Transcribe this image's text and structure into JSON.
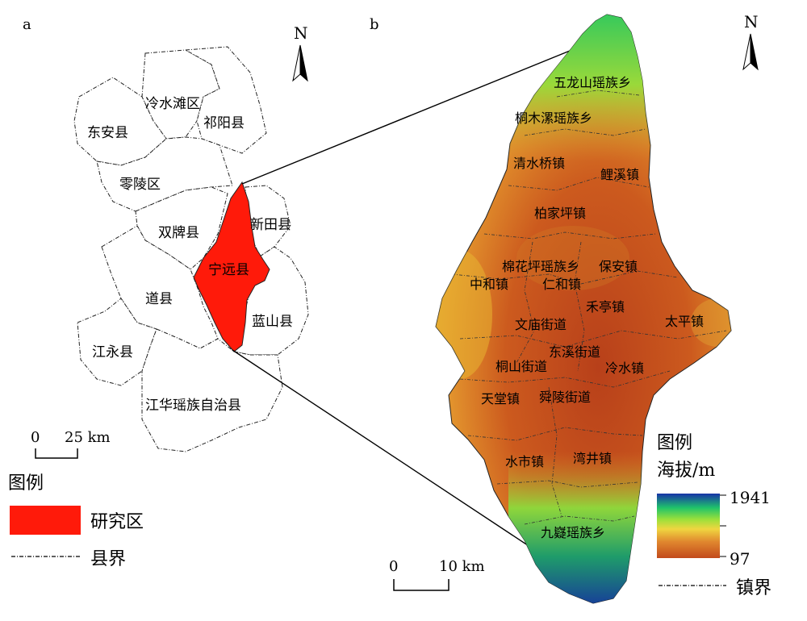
{
  "panels": {
    "a": {
      "letter": "a"
    },
    "b": {
      "letter": "b"
    }
  },
  "north_arrow": {
    "label": "N"
  },
  "colors": {
    "study_area": "#ff1a0a",
    "elev_high": "#1e3aa8",
    "elev_mid_high": "#2fd05a",
    "elev_mid": "#e8e62a",
    "elev_low": "#c95020"
  },
  "map_a": {
    "counties": [
      "冷水滩区",
      "祁阳县",
      "东安县",
      "零陵区",
      "双牌县",
      "新田县",
      "宁远县",
      "道县",
      "蓝山县",
      "江永县",
      "江华瑶族自治县"
    ],
    "scale": {
      "zero": "0",
      "value": "25 km"
    },
    "legend": {
      "title": "图例",
      "study_area": "研究区",
      "county_boundary": "县界"
    }
  },
  "map_b": {
    "towns": [
      "五龙山瑶族乡",
      "桐木漯瑶族乡",
      "清水桥镇",
      "鲤溪镇",
      "柏家坪镇",
      "棉花坪瑶族乡",
      "保安镇",
      "中和镇",
      "仁和镇",
      "禾亭镇",
      "太平镇",
      "文庙街道",
      "东溪街道",
      "冷水镇",
      "桐山街道",
      "天堂镇",
      "舜陵街道",
      "水市镇",
      "湾井镇",
      "九嶷瑶族乡"
    ],
    "scale": {
      "zero": "0",
      "value": "10 km"
    },
    "legend": {
      "title": "图例",
      "elevation_title": "海拔/m",
      "max": "1941",
      "min": "97",
      "town_boundary": "镇界"
    }
  }
}
